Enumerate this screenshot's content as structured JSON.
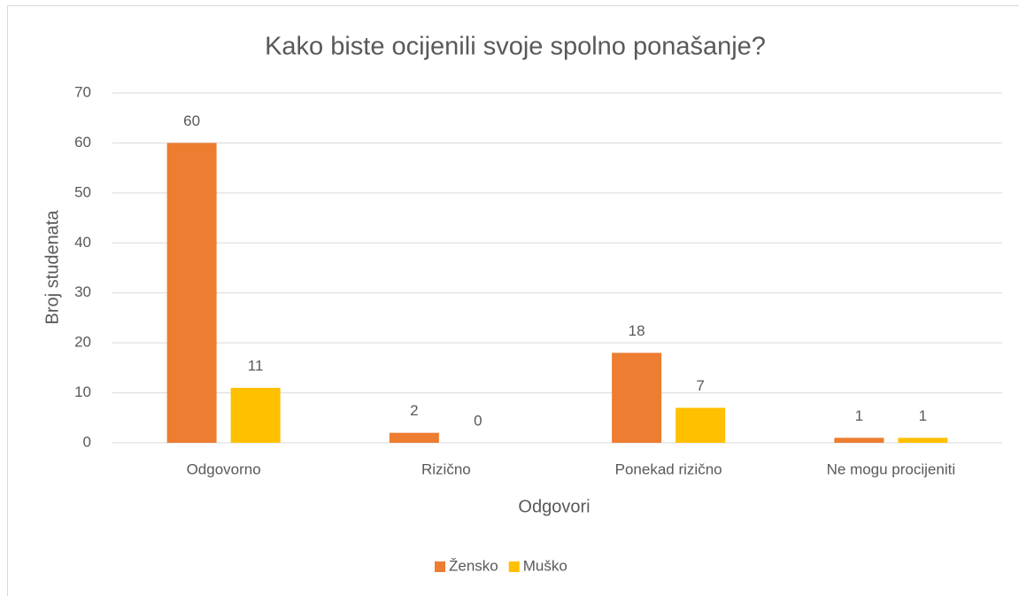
{
  "chart_data": {
    "type": "bar",
    "title": "Kako biste ocijenili svoje spolno ponašanje?",
    "x_label": "Odgovori",
    "y_label": "Broj studenata",
    "categories": [
      "Odgovorno",
      "Rizično",
      "Ponekad rizično",
      "Ne mogu procijeniti"
    ],
    "series": [
      {
        "name": "Žensko",
        "color": "#ed7d31",
        "values": [
          60,
          2,
          18,
          1
        ]
      },
      {
        "name": "Muško",
        "color": "#ffc000",
        "values": [
          11,
          0,
          7,
          1
        ]
      }
    ],
    "ylim": [
      0,
      70
    ],
    "yticks": [
      0,
      10,
      20,
      30,
      40,
      50,
      60,
      70
    ],
    "grid": true,
    "legend": "bottom"
  }
}
